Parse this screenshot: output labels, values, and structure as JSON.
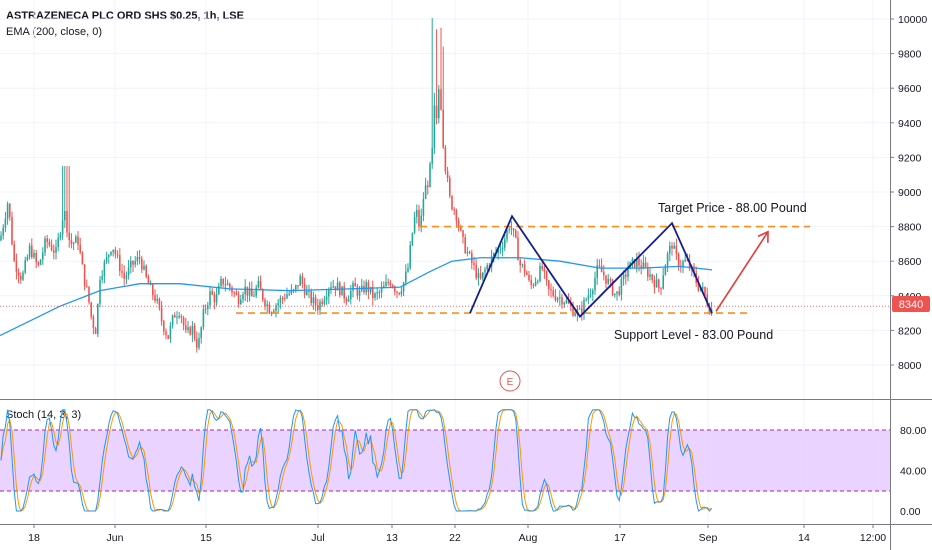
{
  "header": {
    "title": "ASTRAZENECA PLC ORD SHS $0.25, 1h, LSE",
    "ema_label": "EMA (200, close, 0)",
    "stoch_label": "Stoch (14, 3, 3)"
  },
  "annotations": {
    "target": "Target Price - 88.00 Pound",
    "support": "Support Level - 83.00 Pound",
    "event_marker": "E"
  },
  "price_axis": {
    "ticks": [
      "10000",
      "9800",
      "9600",
      "9400",
      "9200",
      "9000",
      "8800",
      "8600",
      "8400",
      "8200",
      "8000"
    ],
    "current_price_label": "8340"
  },
  "stoch_axis": {
    "ticks": [
      "80.00",
      "40.00",
      "0.00"
    ]
  },
  "time_axis": {
    "ticks": [
      "18",
      "Jun",
      "15",
      "Jul",
      "13",
      "22",
      "Aug",
      "17",
      "Sep",
      "14",
      "12:00"
    ]
  },
  "colors": {
    "up": "#26a69a",
    "down": "#ef5350",
    "ema": "#2196f3",
    "pattern": "#131f8c",
    "level": "#ff8c1a",
    "projection": "#e53935",
    "stoch_band": "#e6c8ff",
    "stoch_k": "#2196f3",
    "stoch_d": "#ff9800",
    "price_tag": "#ef5350"
  },
  "chart_data": {
    "type": "candlestick",
    "symbol": "ASTRAZENECA PLC ORD SHS $0.25",
    "interval": "1h",
    "exchange": "LSE",
    "ylim": [
      7800,
      10100
    ],
    "levels": {
      "target": 8800,
      "support": 8300
    },
    "last_price": 8340,
    "stoch_bands": [
      20,
      80
    ],
    "stoch_ylim": [
      -10,
      105
    ],
    "close_path": [
      [
        0,
        8720
      ],
      [
        8,
        8950
      ],
      [
        14,
        8600
      ],
      [
        22,
        8500
      ],
      [
        30,
        8680
      ],
      [
        38,
        8560
      ],
      [
        46,
        8720
      ],
      [
        56,
        8650
      ],
      [
        64,
        8900
      ],
      [
        70,
        8700
      ],
      [
        78,
        8720
      ],
      [
        84,
        8500
      ],
      [
        88,
        8400
      ],
      [
        92,
        8250
      ],
      [
        96,
        8200
      ],
      [
        100,
        8520
      ],
      [
        106,
        8600
      ],
      [
        112,
        8700
      ],
      [
        118,
        8600
      ],
      [
        124,
        8500
      ],
      [
        132,
        8580
      ],
      [
        140,
        8620
      ],
      [
        146,
        8500
      ],
      [
        150,
        8440
      ],
      [
        156,
        8380
      ],
      [
        162,
        8250
      ],
      [
        168,
        8160
      ],
      [
        174,
        8290
      ],
      [
        180,
        8320
      ],
      [
        186,
        8170
      ],
      [
        192,
        8220
      ],
      [
        198,
        8100
      ],
      [
        204,
        8310
      ],
      [
        210,
        8410
      ],
      [
        216,
        8380
      ],
      [
        222,
        8490
      ],
      [
        230,
        8450
      ],
      [
        238,
        8380
      ],
      [
        244,
        8450
      ],
      [
        252,
        8390
      ],
      [
        258,
        8460
      ],
      [
        264,
        8380
      ],
      [
        270,
        8320
      ],
      [
        278,
        8360
      ],
      [
        286,
        8410
      ],
      [
        294,
        8420
      ],
      [
        300,
        8500
      ],
      [
        306,
        8420
      ],
      [
        312,
        8370
      ],
      [
        318,
        8340
      ],
      [
        324,
        8400
      ],
      [
        330,
        8470
      ],
      [
        338,
        8450
      ],
      [
        346,
        8390
      ],
      [
        354,
        8450
      ],
      [
        360,
        8410
      ],
      [
        366,
        8460
      ],
      [
        374,
        8390
      ],
      [
        382,
        8430
      ],
      [
        390,
        8490
      ],
      [
        398,
        8420
      ],
      [
        404,
        8480
      ],
      [
        408,
        8560
      ],
      [
        412,
        8750
      ],
      [
        416,
        8900
      ],
      [
        420,
        8780
      ],
      [
        424,
        9000
      ],
      [
        428,
        9060
      ],
      [
        432,
        9200
      ],
      [
        434,
        9560
      ],
      [
        436,
        9400
      ],
      [
        438,
        9580
      ],
      [
        440,
        9620
      ],
      [
        442,
        9300
      ],
      [
        446,
        9120
      ],
      [
        450,
        8950
      ],
      [
        456,
        8880
      ],
      [
        462,
        8720
      ],
      [
        468,
        8640
      ],
      [
        474,
        8560
      ],
      [
        480,
        8480
      ],
      [
        486,
        8560
      ],
      [
        492,
        8620
      ],
      [
        498,
        8660
      ],
      [
        504,
        8720
      ],
      [
        510,
        8820
      ],
      [
        516,
        8700
      ],
      [
        520,
        8580
      ],
      [
        526,
        8540
      ],
      [
        530,
        8450
      ],
      [
        536,
        8500
      ],
      [
        542,
        8560
      ],
      [
        548,
        8430
      ],
      [
        556,
        8400
      ],
      [
        564,
        8380
      ],
      [
        572,
        8320
      ],
      [
        580,
        8300
      ],
      [
        586,
        8380
      ],
      [
        592,
        8450
      ],
      [
        598,
        8560
      ],
      [
        604,
        8520
      ],
      [
        610,
        8460
      ],
      [
        616,
        8400
      ],
      [
        622,
        8470
      ],
      [
        628,
        8560
      ],
      [
        636,
        8600
      ],
      [
        644,
        8560
      ],
      [
        650,
        8520
      ],
      [
        656,
        8470
      ],
      [
        660,
        8440
      ],
      [
        664,
        8560
      ],
      [
        668,
        8640
      ],
      [
        672,
        8700
      ],
      [
        676,
        8620
      ],
      [
        680,
        8580
      ],
      [
        686,
        8600
      ],
      [
        692,
        8540
      ],
      [
        698,
        8460
      ],
      [
        704,
        8420
      ],
      [
        710,
        8320
      ]
    ],
    "ema200_path": [
      [
        0,
        8170
      ],
      [
        60,
        8340
      ],
      [
        100,
        8430
      ],
      [
        140,
        8470
      ],
      [
        180,
        8470
      ],
      [
        230,
        8440
      ],
      [
        290,
        8430
      ],
      [
        350,
        8440
      ],
      [
        400,
        8450
      ],
      [
        430,
        8540
      ],
      [
        452,
        8600
      ],
      [
        480,
        8620
      ],
      [
        520,
        8620
      ],
      [
        560,
        8600
      ],
      [
        600,
        8560
      ],
      [
        640,
        8560
      ],
      [
        680,
        8570
      ],
      [
        712,
        8550
      ]
    ],
    "pattern_points": [
      [
        470,
        8300
      ],
      [
        512,
        8860
      ],
      [
        580,
        8280
      ],
      [
        672,
        8820
      ],
      [
        712,
        8300
      ]
    ],
    "projection": [
      [
        716,
        8310
      ],
      [
        768,
        8770
      ]
    ],
    "target_segment": [
      420,
      810
    ],
    "support_segment": [
      236,
      750
    ]
  }
}
